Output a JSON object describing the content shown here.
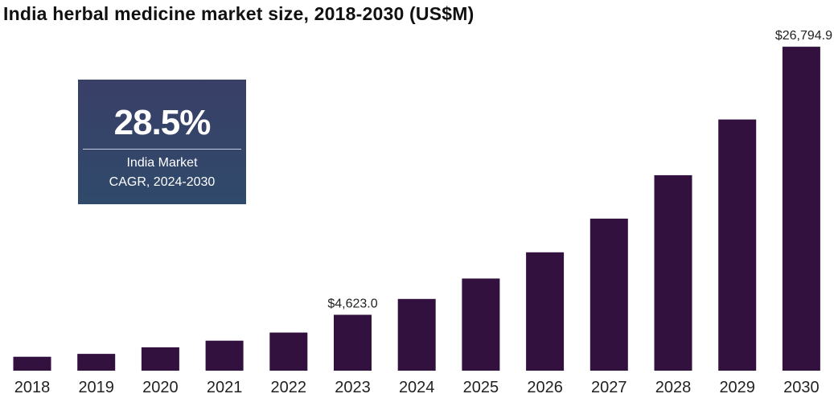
{
  "chart_data": {
    "type": "bar",
    "title": "India herbal medicine market size, 2018-2030 (US$M)",
    "xlabel": "",
    "ylabel": "",
    "categories": [
      "2018",
      "2019",
      "2020",
      "2021",
      "2022",
      "2023",
      "2024",
      "2025",
      "2026",
      "2027",
      "2028",
      "2029",
      "2030"
    ],
    "values": [
      1150,
      1390,
      1930,
      2480,
      3150,
      4623.0,
      5930,
      7620,
      9790,
      12580,
      16170,
      20780,
      26794.9
    ],
    "ylim": [
      0,
      28000
    ],
    "grid": false,
    "legend": "none",
    "bar_color": "#33113f",
    "data_labels": [
      {
        "category": "2023",
        "text": "$4,623.0"
      },
      {
        "category": "2030",
        "text": "$26,794.9"
      }
    ]
  },
  "callout": {
    "value": "28.5%",
    "label_line1": "India Market",
    "label_line2": "CAGR, 2024-2030"
  }
}
